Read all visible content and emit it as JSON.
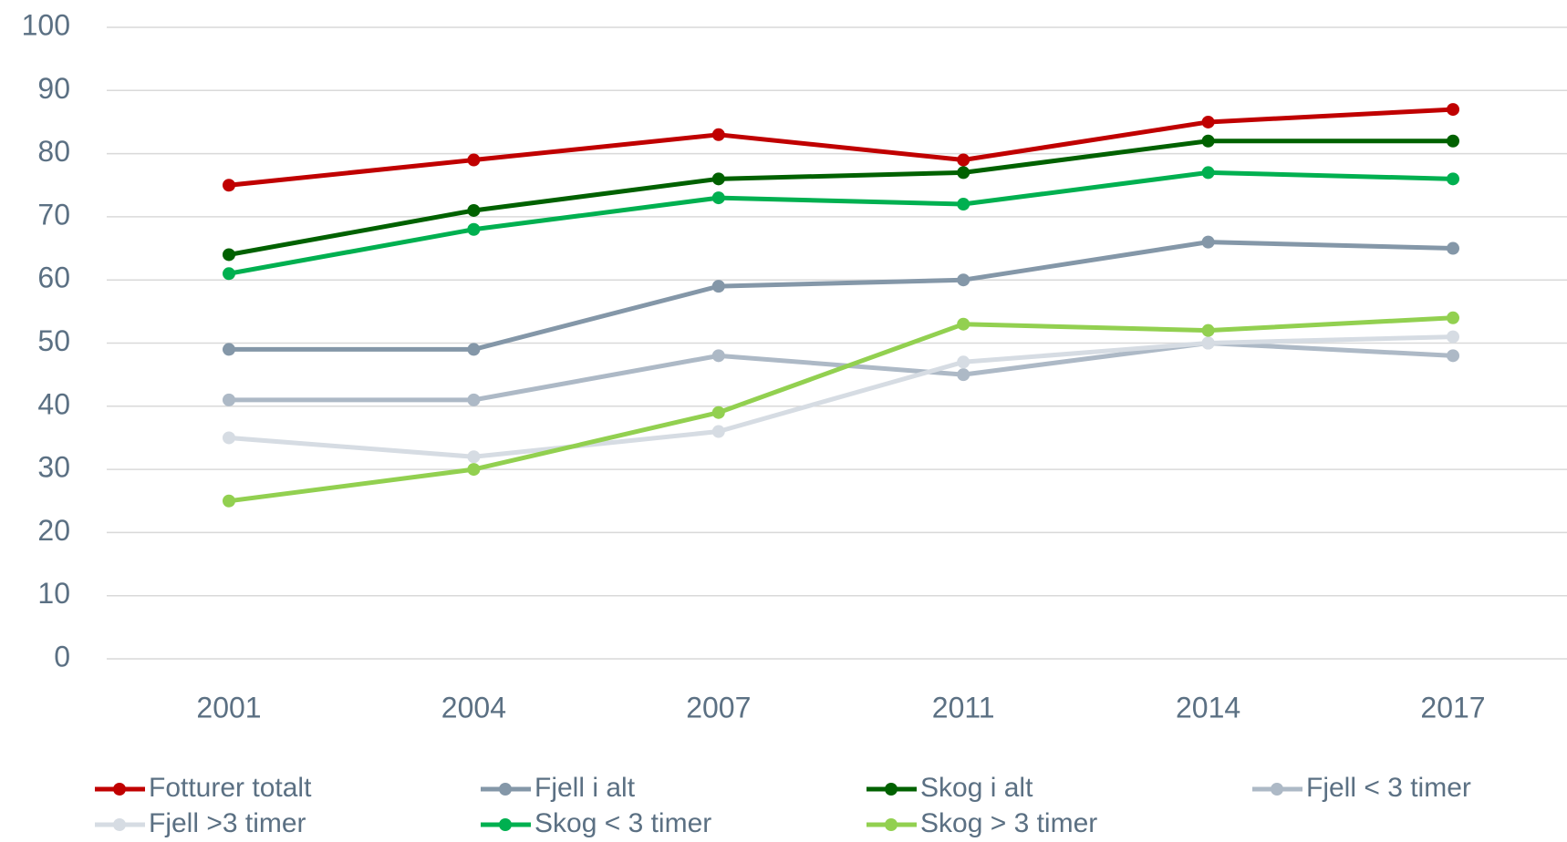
{
  "chart_data": {
    "type": "line",
    "categories": [
      "2001",
      "2004",
      "2007",
      "2011",
      "2014",
      "2017"
    ],
    "series": [
      {
        "name": "Fotturer totalt",
        "color": "#c00000",
        "values": [
          75,
          79,
          83,
          79,
          85,
          87
        ]
      },
      {
        "name": "Fjell i alt",
        "color": "#8497a8",
        "values": [
          49,
          49,
          59,
          60,
          66,
          65
        ]
      },
      {
        "name": "Skog i alt",
        "color": "#006100",
        "values": [
          64,
          71,
          76,
          77,
          82,
          82
        ]
      },
      {
        "name": "Fjell < 3 timer",
        "color": "#adb9c6",
        "values": [
          41,
          41,
          48,
          45,
          50,
          48
        ]
      },
      {
        "name": "Fjell >3 timer",
        "color": "#d6dce3",
        "values": [
          35,
          32,
          36,
          47,
          50,
          51
        ]
      },
      {
        "name": "Skog < 3 timer",
        "color": "#00b050",
        "values": [
          61,
          68,
          73,
          72,
          77,
          76
        ]
      },
      {
        "name": "Skog > 3 timer",
        "color": "#92d050",
        "values": [
          25,
          30,
          39,
          53,
          52,
          54
        ]
      }
    ],
    "ylim": [
      0,
      100
    ],
    "yticks": [
      0,
      10,
      20,
      30,
      40,
      50,
      60,
      70,
      80,
      90,
      100
    ],
    "grid": true,
    "legend": "bottom"
  }
}
